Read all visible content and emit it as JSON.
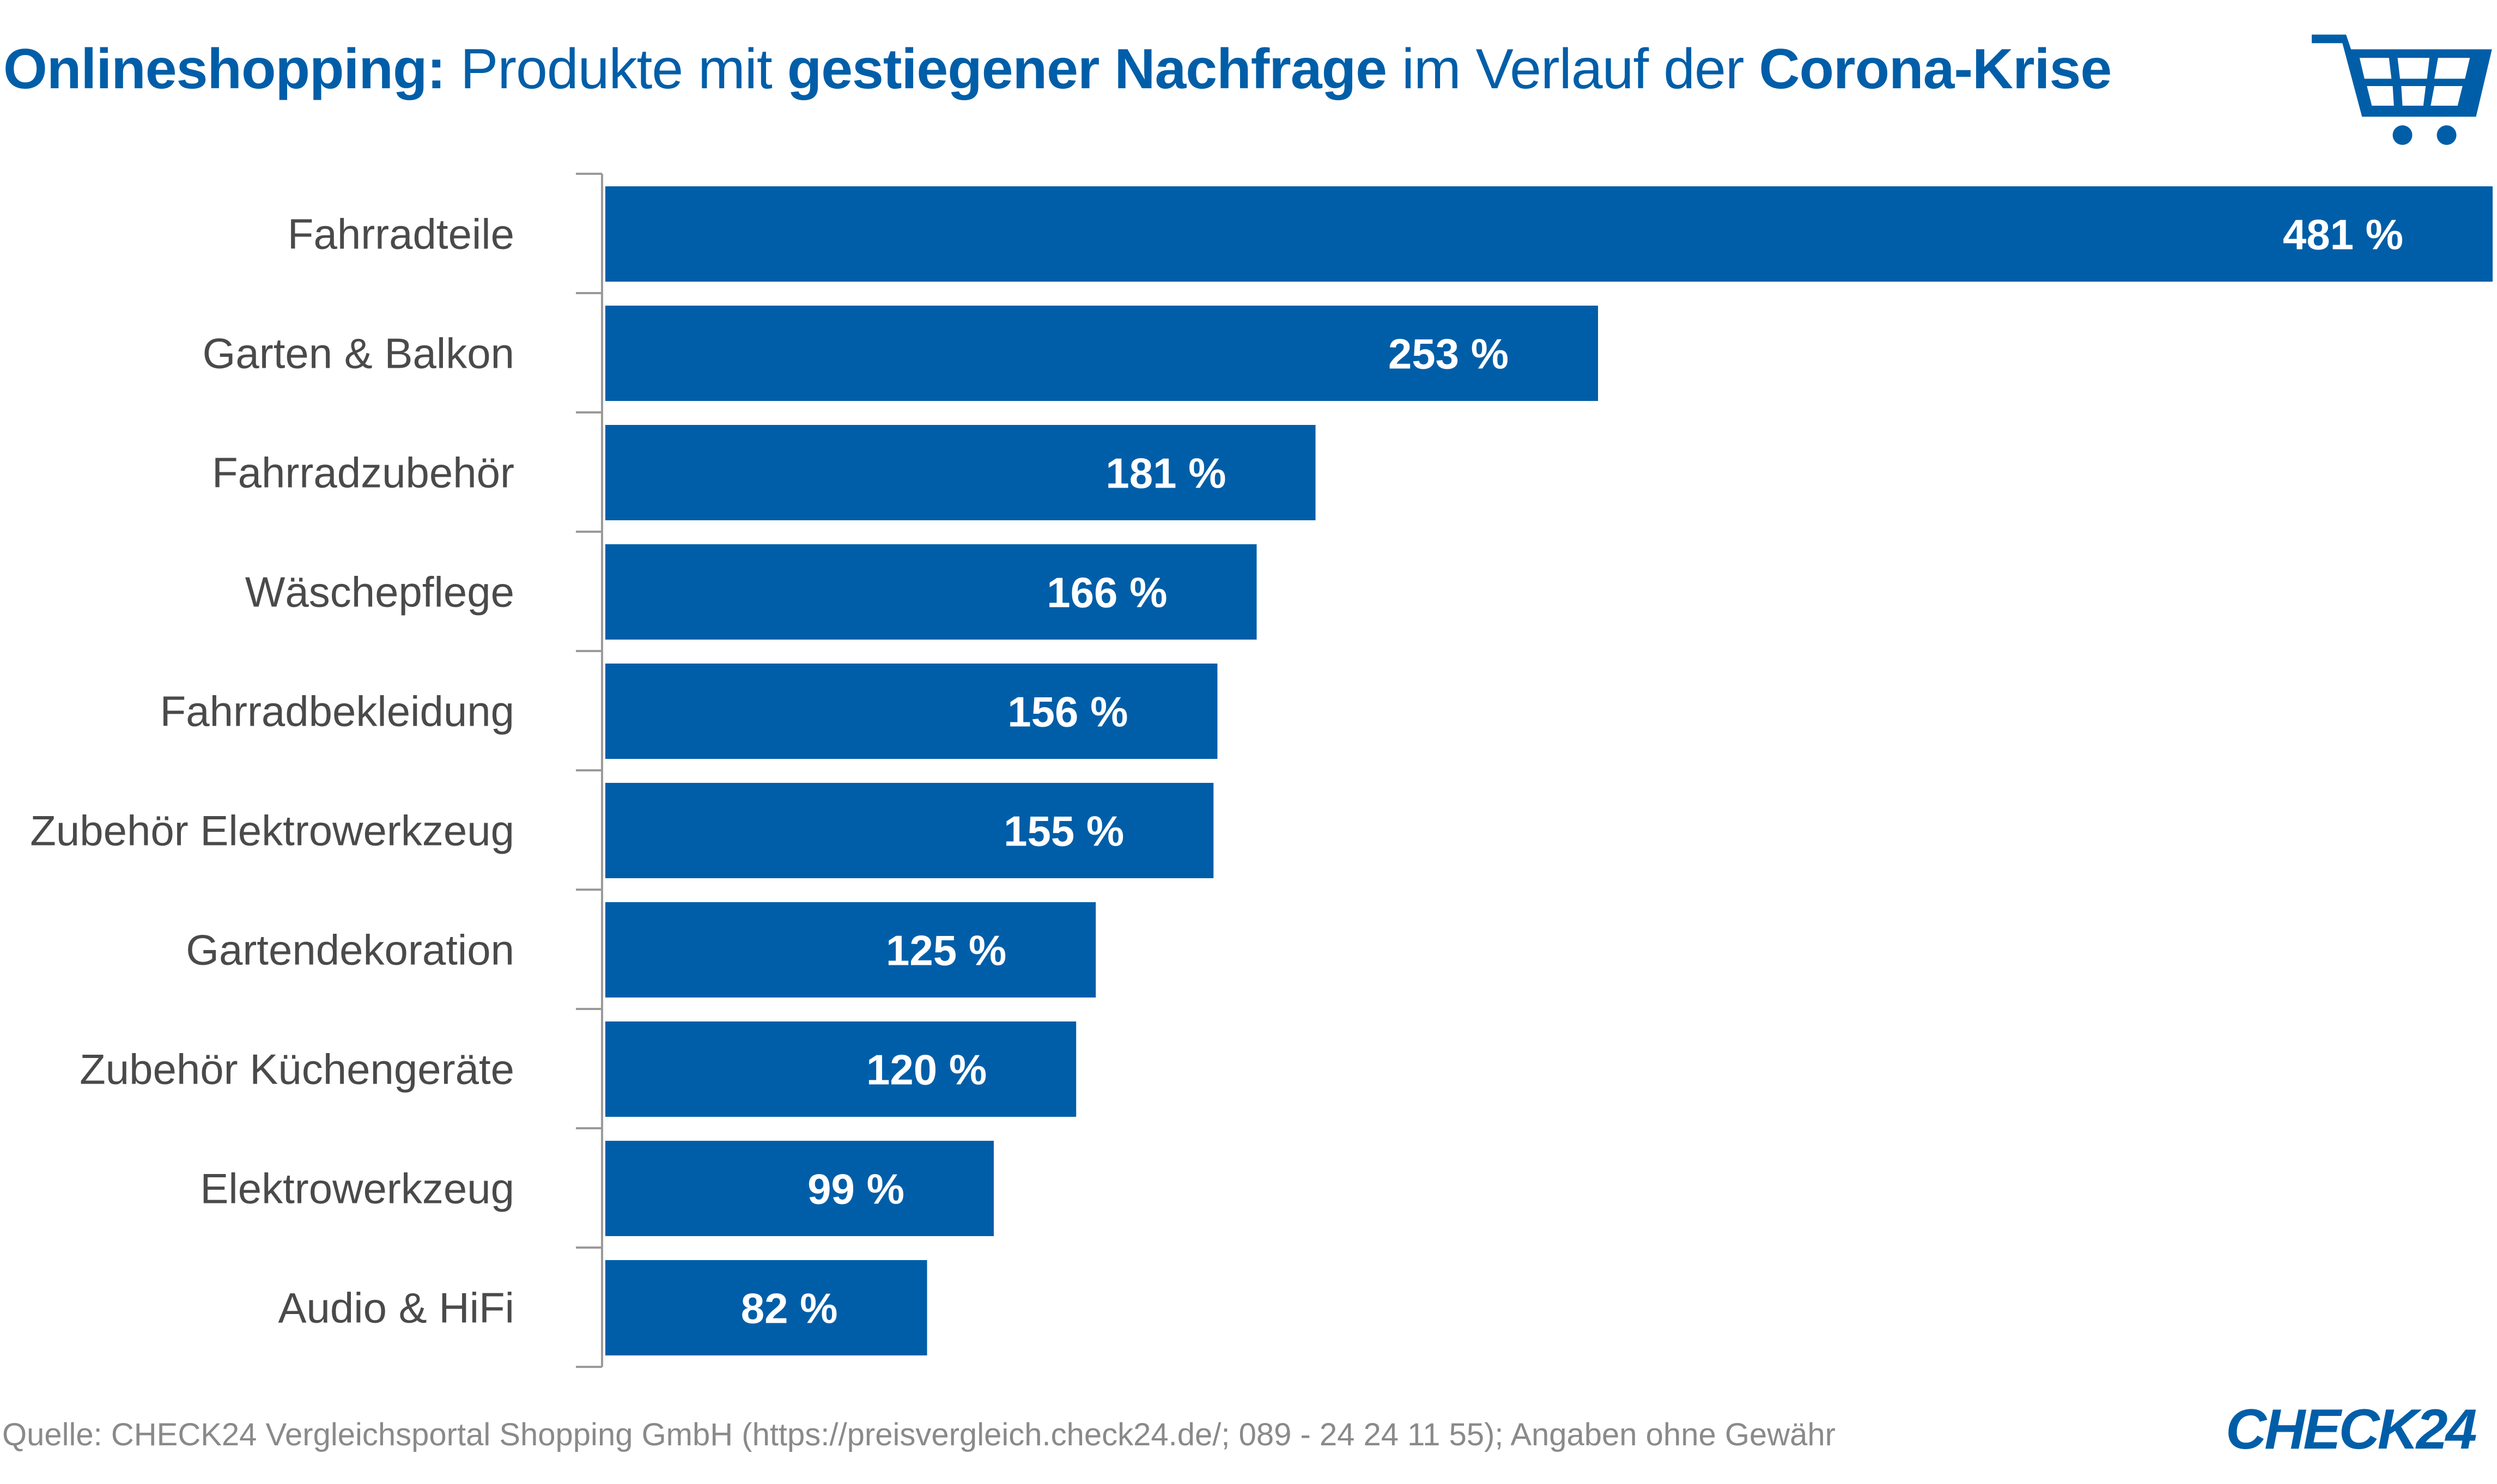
{
  "title": {
    "part1_bold": "Onlineshopping:",
    "part2": " Produkte mit ",
    "part3_bold": "gestiegener Nachfrage",
    "part4": " im Verlauf der ",
    "part5_bold": "Corona-Krise"
  },
  "colors": {
    "accent": "#005ea8",
    "bar_label": "#ffffff",
    "category_label": "#4a4a4a",
    "footer": "#8a8a8a"
  },
  "icons": {
    "cart": "shopping-cart-icon"
  },
  "chart_data": {
    "type": "bar",
    "orientation": "horizontal",
    "categories": [
      "Fahrradteile",
      "Garten & Balkon",
      "Fahrradzubehör",
      "Wäschepflege",
      "Fahrradbekleidung",
      "Zubehör Elektrowerkzeug",
      "Gartendekoration",
      "Zubehör Küchengeräte",
      "Elektrowerkzeug",
      "Audio & HiFi"
    ],
    "values": [
      481,
      253,
      181,
      166,
      156,
      155,
      125,
      120,
      99,
      82
    ],
    "value_labels": [
      "481 %",
      "253 %",
      "181 %",
      "166 %",
      "156 %",
      "155 %",
      "125 %",
      "120 %",
      "99 %",
      "82 %"
    ],
    "unit": "%",
    "xlim": [
      0,
      481
    ],
    "grid": false,
    "legend": "none"
  },
  "footer": {
    "source": "Quelle: CHECK24 Vergleichsportal Shopping GmbH (https://preisvergleich.check24.de/; 089 - 24 24 11 55); Angaben ohne Gewähr"
  },
  "logo": {
    "text": "CHECK24"
  }
}
